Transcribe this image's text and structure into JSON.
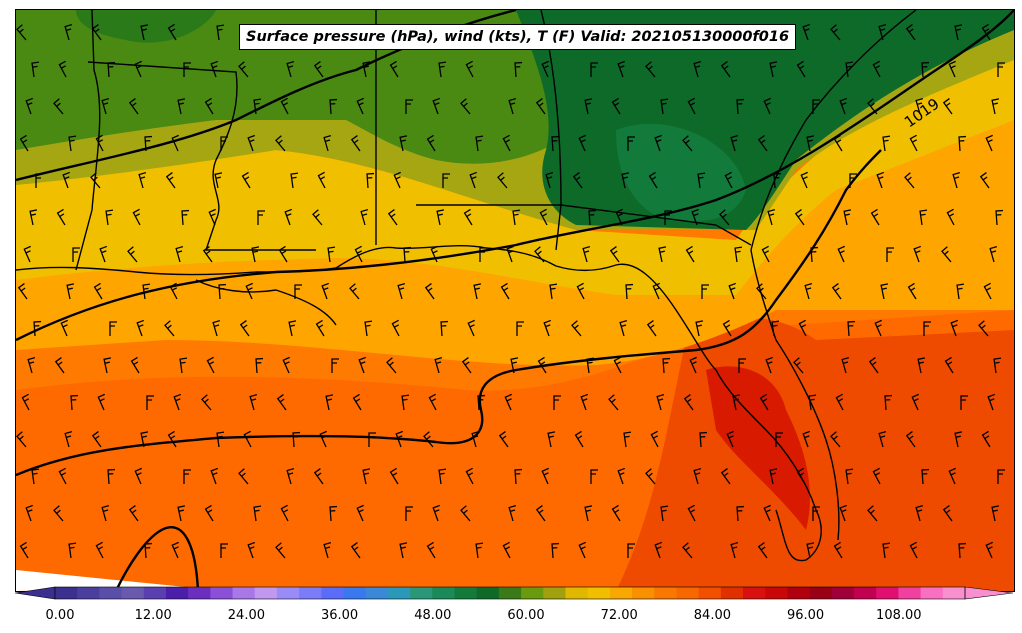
{
  "title": "Surface pressure (hPa), wind (kts), T (F) Valid: 202105130000f016",
  "isobar_label": "1019",
  "colorbar": {
    "tick_labels": [
      "0.00",
      "12.00",
      "24.00",
      "36.00",
      "48.00",
      "60.00",
      "72.00",
      "84.00",
      "96.00",
      "108.00"
    ],
    "colors": [
      "#3b2f8f",
      "#4a3f9f",
      "#5a4fa8",
      "#6a5aae",
      "#5a3fb0",
      "#4b1fa8",
      "#6b2fc0",
      "#8a50d8",
      "#a878e8",
      "#c098f0",
      "#9a8cf8",
      "#7a7cf8",
      "#5a6cf8",
      "#3a78f0",
      "#3a88d8",
      "#2a98b8",
      "#2a9878",
      "#1a8a58",
      "#127a3a",
      "#0e6a28",
      "#3a7a18",
      "#6a9a10",
      "#a0a010",
      "#e0b800",
      "#f0c000",
      "#f8a800",
      "#f89000",
      "#f87800",
      "#f86800",
      "#f05000",
      "#e03000",
      "#d81010",
      "#c80808",
      "#b00010",
      "#980018",
      "#a00038",
      "#c00050",
      "#e01070",
      "#f040a0",
      "#f870c0",
      "#f890d0"
    ]
  }
}
